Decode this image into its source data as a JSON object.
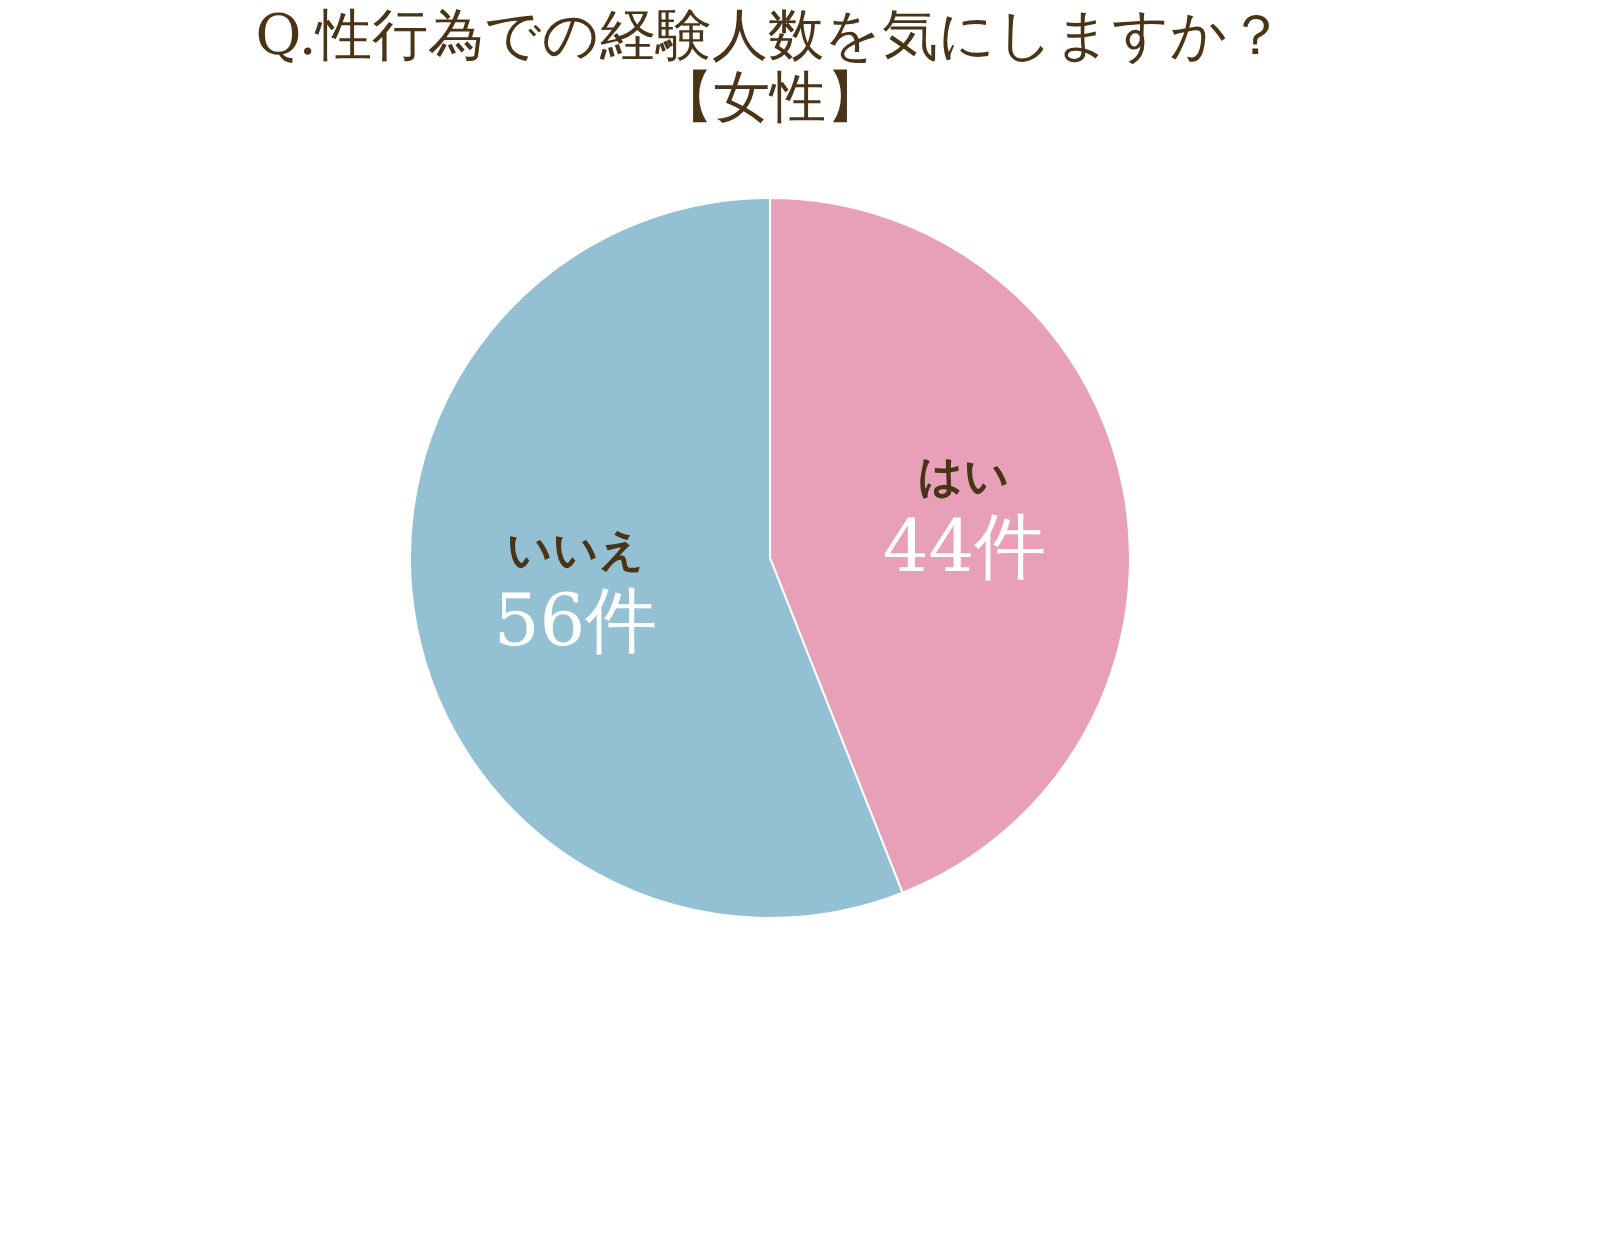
{
  "chart_data": {
    "type": "pie",
    "title": "Q.性行為での経験人数を気にしますか？",
    "subtitle": "【女性】",
    "categories": [
      "はい",
      "いいえ"
    ],
    "values": [
      44,
      56
    ],
    "value_labels": [
      "44件",
      "56件"
    ],
    "colors": [
      "#e8a0b8",
      "#93c0d3"
    ],
    "legend": false
  }
}
